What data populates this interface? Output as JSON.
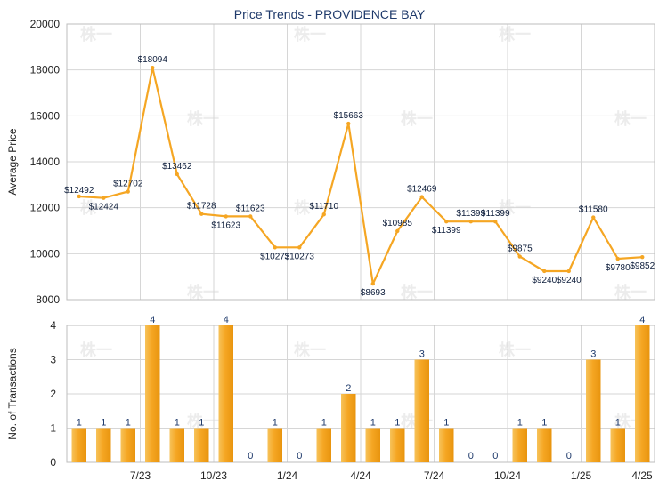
{
  "chart_data": [
    {
      "type": "line",
      "title": "Price Trends - PROVIDENCE BAY",
      "ylabel": "Average Price",
      "ylim": [
        8000,
        20000
      ],
      "yticks": [
        "8000",
        "10000",
        "12000",
        "14000",
        "16000",
        "18000",
        "20000"
      ],
      "x_tick_labels": [
        "7/23",
        "10/23",
        "1/24",
        "4/24",
        "7/24",
        "10/24",
        "1/25",
        "4/25"
      ],
      "grid": true,
      "color": "#f5a623",
      "values": [
        12492,
        12424,
        12702,
        18094,
        13462,
        11728,
        11623,
        11623,
        10273,
        10273,
        11710,
        15663,
        8693,
        10985,
        12469,
        11399,
        11399,
        11399,
        9875,
        9240,
        9240,
        11580,
        9780,
        9852
      ],
      "labels": [
        "$12492",
        "$12424",
        "$12702",
        "$18094",
        "$13462",
        "$11728",
        "$11623",
        "$11623",
        "$10273",
        "$10273",
        "$11710",
        "$15663",
        "$8693",
        "$10985",
        "$12469",
        "$11399",
        "$11399",
        "$11399",
        "$9875",
        "$9240",
        "$9240",
        "$11580",
        "$9780",
        "$9852"
      ]
    },
    {
      "type": "bar",
      "ylabel": "No. of Transactions",
      "ylim": [
        0,
        4
      ],
      "yticks": [
        "0",
        "1",
        "2",
        "3",
        "4"
      ],
      "x_tick_labels": [
        "7/23",
        "10/23",
        "1/24",
        "4/24",
        "7/24",
        "10/24",
        "1/25",
        "4/25"
      ],
      "grid": true,
      "color": "#f5a623",
      "values": [
        1,
        1,
        1,
        4,
        1,
        1,
        4,
        0,
        1,
        0,
        1,
        2,
        1,
        1,
        3,
        1,
        0,
        0,
        1,
        1,
        0,
        3,
        1,
        4
      ],
      "labels": [
        "1",
        "1",
        "1",
        "4",
        "1",
        "1",
        "4",
        "0",
        "1",
        "0",
        "1",
        "2",
        "1",
        "1",
        "3",
        "1",
        "0",
        "0",
        "1",
        "1",
        "0",
        "3",
        "1",
        "4"
      ]
    }
  ],
  "watermark": "株一"
}
